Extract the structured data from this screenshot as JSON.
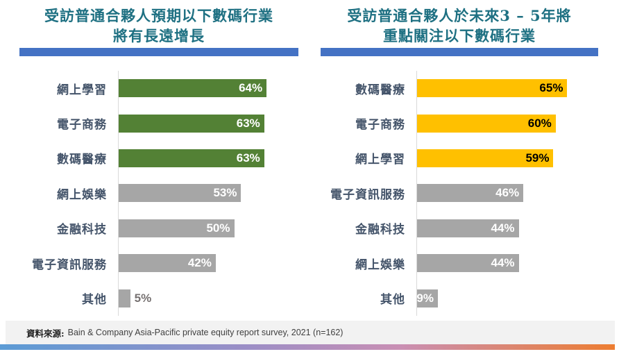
{
  "chart_data": [
    {
      "type": "bar",
      "orientation": "horizontal",
      "title_lines": [
        "受訪普通合夥人預期以下數碼行業",
        "將有長遠增長"
      ],
      "categories": [
        "網上學習",
        "電子商務",
        "數碼醫療",
        "網上娛樂",
        "金融科技",
        "電子資訊服務",
        "其他"
      ],
      "values": [
        64,
        63,
        63,
        53,
        50,
        42,
        5
      ],
      "bars": [
        {
          "category": "網上學習",
          "value": 64,
          "label": "64%",
          "color": "#538135",
          "label_color": "#FFFFFF",
          "label_position": "inside"
        },
        {
          "category": "電子商務",
          "value": 63,
          "label": "63%",
          "color": "#538135",
          "label_color": "#FFFFFF",
          "label_position": "inside"
        },
        {
          "category": "數碼醫療",
          "value": 63,
          "label": "63%",
          "color": "#538135",
          "label_color": "#FFFFFF",
          "label_position": "inside"
        },
        {
          "category": "網上娛樂",
          "value": 53,
          "label": "53%",
          "color": "#A6A6A6",
          "label_color": "#FFFFFF",
          "label_position": "inside"
        },
        {
          "category": "金融科技",
          "value": 50,
          "label": "50%",
          "color": "#A6A6A6",
          "label_color": "#FFFFFF",
          "label_position": "inside"
        },
        {
          "category": "電子資訊服務",
          "value": 42,
          "label": "42%",
          "color": "#A6A6A6",
          "label_color": "#FFFFFF",
          "label_position": "inside"
        },
        {
          "category": "其他",
          "value": 5,
          "label": "5%",
          "color": "#A6A6A6",
          "label_color": "#767171",
          "label_position": "outside"
        }
      ],
      "xlim": [
        0,
        100
      ],
      "grid": false,
      "legend": false,
      "value_suffix": "%"
    },
    {
      "type": "bar",
      "orientation": "horizontal",
      "title_lines": [
        "受訪普通合夥人於未來3 – 5年將",
        "重點關注以下數碼行業"
      ],
      "categories": [
        "數碼醫療",
        "電子商務",
        "網上學習",
        "電子資訊服務",
        "金融科技",
        "網上娛樂",
        "其他"
      ],
      "values": [
        65,
        60,
        59,
        46,
        44,
        44,
        9
      ],
      "bars": [
        {
          "category": "數碼醫療",
          "value": 65,
          "label": "65%",
          "color": "#FFC000",
          "label_color": "#000000",
          "label_position": "inside"
        },
        {
          "category": "電子商務",
          "value": 60,
          "label": "60%",
          "color": "#FFC000",
          "label_color": "#000000",
          "label_position": "inside"
        },
        {
          "category": "網上學習",
          "value": 59,
          "label": "59%",
          "color": "#FFC000",
          "label_color": "#000000",
          "label_position": "inside"
        },
        {
          "category": "電子資訊服務",
          "value": 46,
          "label": "46%",
          "color": "#A6A6A6",
          "label_color": "#FFFFFF",
          "label_position": "inside"
        },
        {
          "category": "金融科技",
          "value": 44,
          "label": "44%",
          "color": "#A6A6A6",
          "label_color": "#FFFFFF",
          "label_position": "inside"
        },
        {
          "category": "網上娛樂",
          "value": 44,
          "label": "44%",
          "color": "#A6A6A6",
          "label_color": "#FFFFFF",
          "label_position": "inside"
        },
        {
          "category": "其他",
          "value": 9,
          "label": "9%",
          "color": "#A6A6A6",
          "label_color": "#FFFFFF",
          "label_position": "inside"
        }
      ],
      "xlim": [
        0,
        100
      ],
      "grid": false,
      "legend": false,
      "value_suffix": "%"
    }
  ],
  "footer": {
    "label": "資料來源:",
    "text": "Bain & Company Asia-Pacific private equity report survey, 2021 (n=162)"
  },
  "palette": {
    "title_text": "#1E7082",
    "title_underline": "#4472C4",
    "category_text": "#44546A",
    "green_bar": "#538135",
    "gold_bar": "#FFC000",
    "gray_bar": "#A6A6A6",
    "axis_line": "#D9D9D9",
    "footer_background": "#F2F2F2",
    "outside_label_text": "#767171",
    "gradient": [
      "#5B9BD5",
      "#9B8EC6",
      "#C98FB4",
      "#ED7D31"
    ]
  }
}
